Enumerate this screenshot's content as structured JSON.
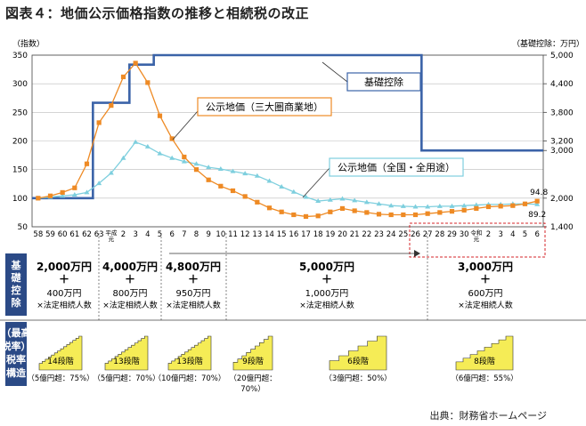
{
  "title": "図表４：地価公示価格指数の推移と相続税の改正",
  "source": "出典：財務省ホームページ",
  "chart_data": {
    "type": "line",
    "left_axis": {
      "label": "（指数）",
      "min": 50,
      "max": 350,
      "ticks": [
        "350",
        "300",
        "250",
        "200",
        "150",
        "100",
        "50"
      ]
    },
    "right_axis": {
      "label": "（基礎控除：万円）",
      "min": 1400,
      "max": 5000,
      "ticks": [
        "5,000",
        "4,400",
        "3,800",
        "3,200",
        "3,000",
        "2,000",
        "1,400"
      ]
    },
    "x_labels": [
      "58",
      "59",
      "60",
      "61",
      "62",
      "63",
      "平成元",
      "2",
      "3",
      "4",
      "5",
      "6",
      "7",
      "8",
      "9",
      "10",
      "11",
      "12",
      "13",
      "14",
      "15",
      "16",
      "17",
      "18",
      "19",
      "20",
      "21",
      "22",
      "23",
      "24",
      "25",
      "26",
      "27",
      "28",
      "29",
      "30",
      "令和元",
      "2",
      "3",
      "4",
      "5",
      "6"
    ],
    "series": [
      {
        "name": "公示地価（三大圏商業地）",
        "color": "#ee8a24",
        "values": [
          100,
          104,
          110,
          118,
          160,
          232,
          262,
          312,
          336,
          302,
          244,
          204,
          172,
          150,
          132,
          121,
          113,
          103,
          93,
          83,
          76,
          71,
          68,
          69,
          76,
          82,
          78,
          75,
          72,
          71,
          71,
          71,
          73,
          75,
          77,
          79,
          82,
          85,
          86,
          87,
          90,
          94.8
        ]
      },
      {
        "name": "公示地価（全国・全用途）",
        "color": "#7ecfde",
        "values": [
          100,
          102,
          104,
          106,
          110,
          126,
          144,
          170,
          198,
          190,
          178,
          170,
          164,
          160,
          154,
          151,
          147,
          143,
          139,
          130,
          120,
          111,
          102,
          95,
          97,
          99,
          96,
          93,
          90,
          87,
          86,
          85,
          85,
          86,
          86,
          87,
          88,
          89,
          89,
          90,
          90,
          89.2
        ]
      },
      {
        "name": "基礎控除",
        "color": "#3b63a8",
        "values": [
          2000,
          2000,
          2000,
          2000,
          2000,
          4000,
          4000,
          4000,
          4800,
          4800,
          5000,
          5000,
          5000,
          5000,
          5000,
          5000,
          5000,
          5000,
          5000,
          5000,
          5000,
          5000,
          5000,
          5000,
          5000,
          5000,
          5000,
          5000,
          5000,
          5000,
          5000,
          5000,
          3000,
          3000,
          3000,
          3000,
          3000,
          3000,
          3000,
          3000,
          3000,
          3000
        ]
      }
    ],
    "end_labels": [
      "94.8",
      "89.2"
    ],
    "legend_labels": {
      "kiso": "基礎控除",
      "shogyo": "公示地価（三大圏商業地）",
      "zenkoku": "公示地価（全国・全用途）"
    }
  },
  "bands": {
    "kiso_label": "基礎控除",
    "zeiritsu_label": "（最高税率）税率構造",
    "cols": [
      {
        "main": "2,000万円",
        "plus": "＋",
        "sub": "400万円",
        "sub2": "×法定相続人数",
        "steps": "14段階",
        "rate": "（5億円超：75%）"
      },
      {
        "main": "4,000万円",
        "plus": "＋",
        "sub": "800万円",
        "sub2": "×法定相続人数",
        "steps": "13段階",
        "rate": "（5億円超：70%）"
      },
      {
        "main": "4,800万円",
        "plus": "＋",
        "sub": "950万円",
        "sub2": "×法定相続人数",
        "steps": "13段階",
        "rate": "（10億円超：70%）"
      },
      {
        "main": "5,000万円",
        "plus": "＋",
        "sub": "1,000万円",
        "sub2": "×法定相続人数",
        "steps": "9段階",
        "rate": "（20億円超：",
        "rate2": "70%）"
      },
      {
        "main": "",
        "plus": "",
        "sub": "",
        "sub2": "",
        "steps": "6段階",
        "rate": "（3億円超：50%）"
      },
      {
        "main": "3,000万円",
        "plus": "＋",
        "sub": "600万円",
        "sub2": "×法定相続人数",
        "steps": "8段階",
        "rate": "（6億円超：55%）"
      }
    ]
  }
}
